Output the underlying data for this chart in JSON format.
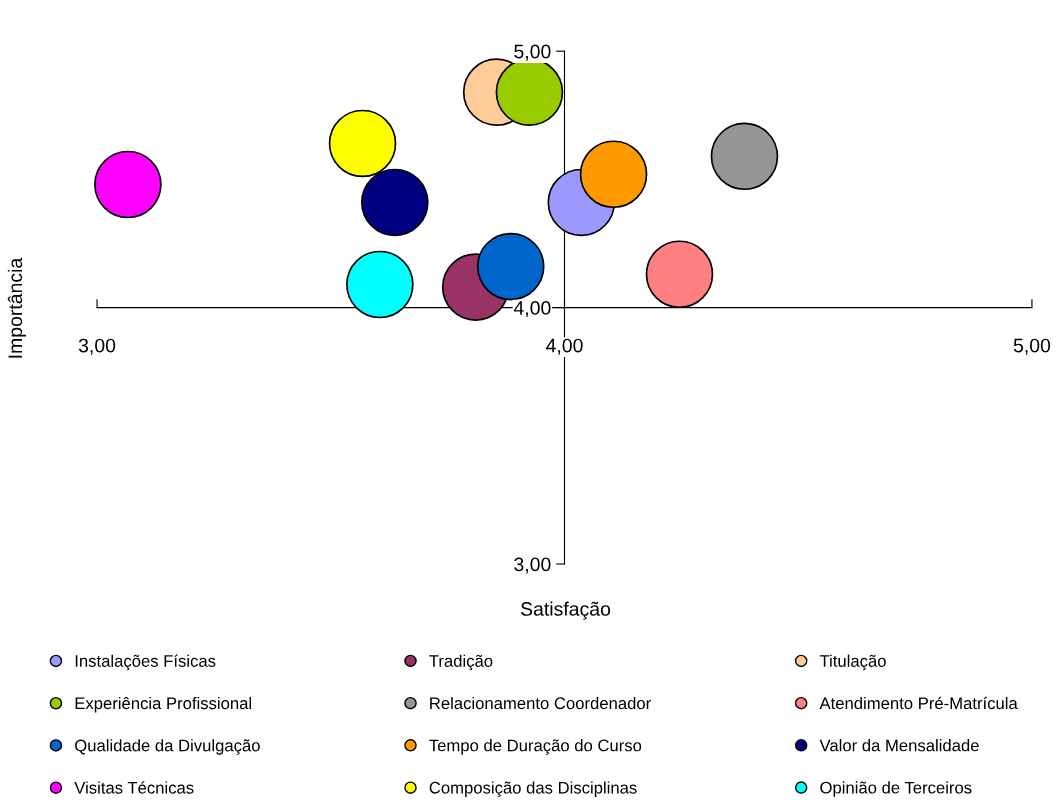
{
  "chart_data": {
    "type": "scatter",
    "xlabel": "Satisfação",
    "ylabel": "Importância",
    "xlim": [
      3,
      5
    ],
    "ylim": [
      3,
      5
    ],
    "xticks": [
      {
        "value": 3,
        "label": "3,00"
      },
      {
        "value": 4,
        "label": "4,00"
      },
      {
        "value": 5,
        "label": "5,00"
      }
    ],
    "yticks": [
      {
        "value": 3,
        "label": "3,00"
      },
      {
        "value": 4,
        "label": "4,00"
      },
      {
        "value": 5,
        "label": "5,00"
      }
    ],
    "grid": false,
    "legend": "bottom",
    "marker": "circle",
    "series": [
      {
        "name": "Instalações Físicas",
        "color": "#9999ff",
        "x": [
          4.036
        ],
        "values": [
          4.41
        ]
      },
      {
        "name": "Tradição",
        "color": "#993366",
        "x": [
          3.81
        ],
        "values": [
          4.08
        ]
      },
      {
        "name": "Titulação",
        "color": "#ffcc99",
        "x": [
          3.855
        ],
        "values": [
          4.84
        ]
      },
      {
        "name": "Experiência Profissional",
        "color": "#99cc00",
        "x": [
          3.925
        ],
        "values": [
          4.84
        ]
      },
      {
        "name": "Relacionamento Coordenador",
        "color": "#969696",
        "x": [
          4.385
        ],
        "values": [
          4.59
        ]
      },
      {
        "name": "Atendimento Pré-Matrícula",
        "color": "#ff8080",
        "x": [
          4.246
        ],
        "values": [
          4.13
        ]
      },
      {
        "name": "Qualidade da Divulgação",
        "color": "#0066cc",
        "x": [
          3.885
        ],
        "values": [
          4.16
        ]
      },
      {
        "name": "Tempo de Duração do Curso",
        "color": "#ff9900",
        "x": [
          4.105
        ],
        "values": [
          4.52
        ]
      },
      {
        "name": "Valor da Mensalidade",
        "color": "#000080",
        "x": [
          3.637
        ],
        "values": [
          4.41
        ]
      },
      {
        "name": "Visitas Técnicas",
        "color": "#ff00ff",
        "x": [
          3.066
        ],
        "values": [
          4.48
        ]
      },
      {
        "name": "Composição das Disciplinas",
        "color": "#ffff00",
        "x": [
          3.568
        ],
        "values": [
          4.64
        ]
      },
      {
        "name": "Opinião de Terceiros",
        "color": "#00ffff",
        "x": [
          3.605
        ],
        "values": [
          4.09
        ]
      }
    ]
  }
}
